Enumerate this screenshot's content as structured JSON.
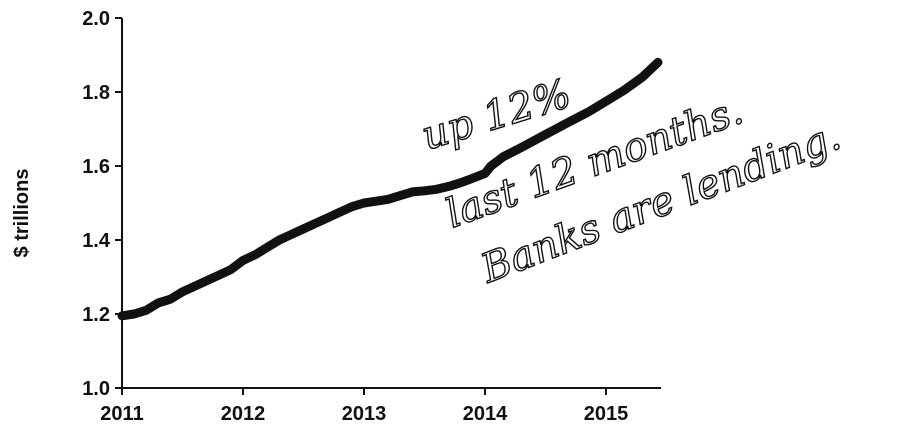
{
  "chart_data": {
    "type": "line",
    "ylabel": "$ trillions",
    "xlabel": "",
    "title": "",
    "xlim": [
      2011,
      2015.45
    ],
    "ylim": [
      1.0,
      2.0
    ],
    "x_ticks": [
      "2011",
      "2012",
      "2013",
      "2014",
      "2015"
    ],
    "y_ticks": [
      "1.0",
      "1.2",
      "1.4",
      "1.6",
      "1.8",
      "2.0"
    ],
    "grid": false,
    "series": [
      {
        "color": "#111111",
        "x": [
          2011.0,
          2011.1,
          2011.2,
          2011.3,
          2011.4,
          2011.5,
          2011.6,
          2011.7,
          2011.8,
          2011.9,
          2012.0,
          2012.1,
          2012.2,
          2012.3,
          2012.4,
          2012.5,
          2012.6,
          2012.7,
          2012.8,
          2012.9,
          2013.0,
          2013.1,
          2013.2,
          2013.3,
          2013.4,
          2013.5,
          2013.6,
          2013.7,
          2013.8,
          2013.9,
          2014.0,
          2014.05,
          2014.15,
          2014.3,
          2014.5,
          2014.7,
          2014.85,
          2015.0,
          2015.15,
          2015.3,
          2015.43
        ],
        "values": [
          1.195,
          1.2,
          1.21,
          1.23,
          1.24,
          1.26,
          1.275,
          1.29,
          1.305,
          1.32,
          1.345,
          1.36,
          1.38,
          1.4,
          1.415,
          1.43,
          1.445,
          1.46,
          1.475,
          1.49,
          1.5,
          1.505,
          1.51,
          1.52,
          1.53,
          1.533,
          1.537,
          1.545,
          1.555,
          1.567,
          1.58,
          1.6,
          1.625,
          1.65,
          1.685,
          1.72,
          1.745,
          1.775,
          1.805,
          1.84,
          1.88
        ]
      }
    ]
  },
  "annotations": {
    "line1": "up 12%",
    "line2": "last 12 months.",
    "line3": "Banks are lending."
  }
}
